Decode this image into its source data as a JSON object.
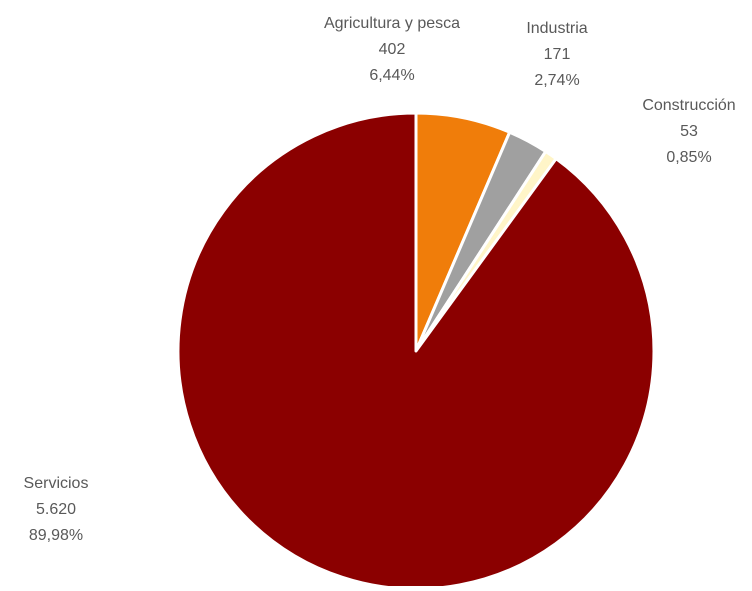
{
  "chart_data": {
    "type": "pie",
    "title": "",
    "start_angle_deg": 0,
    "direction": "clockwise",
    "slices": [
      {
        "label": "Agricultura y pesca",
        "value": 402,
        "value_text": "402",
        "percent_text": "6,44%",
        "color": "#F07D0A"
      },
      {
        "label": "Industria",
        "value": 171,
        "value_text": "171",
        "percent_text": "2,74%",
        "color": "#A0A0A0"
      },
      {
        "label": "Construcción",
        "value": 53,
        "value_text": "53",
        "percent_text": "0,85%",
        "color": "#FFF5C8"
      },
      {
        "label": "Servicios",
        "value": 5620,
        "value_text": "5.620",
        "percent_text": "89,98%",
        "color": "#8B0000"
      }
    ]
  }
}
